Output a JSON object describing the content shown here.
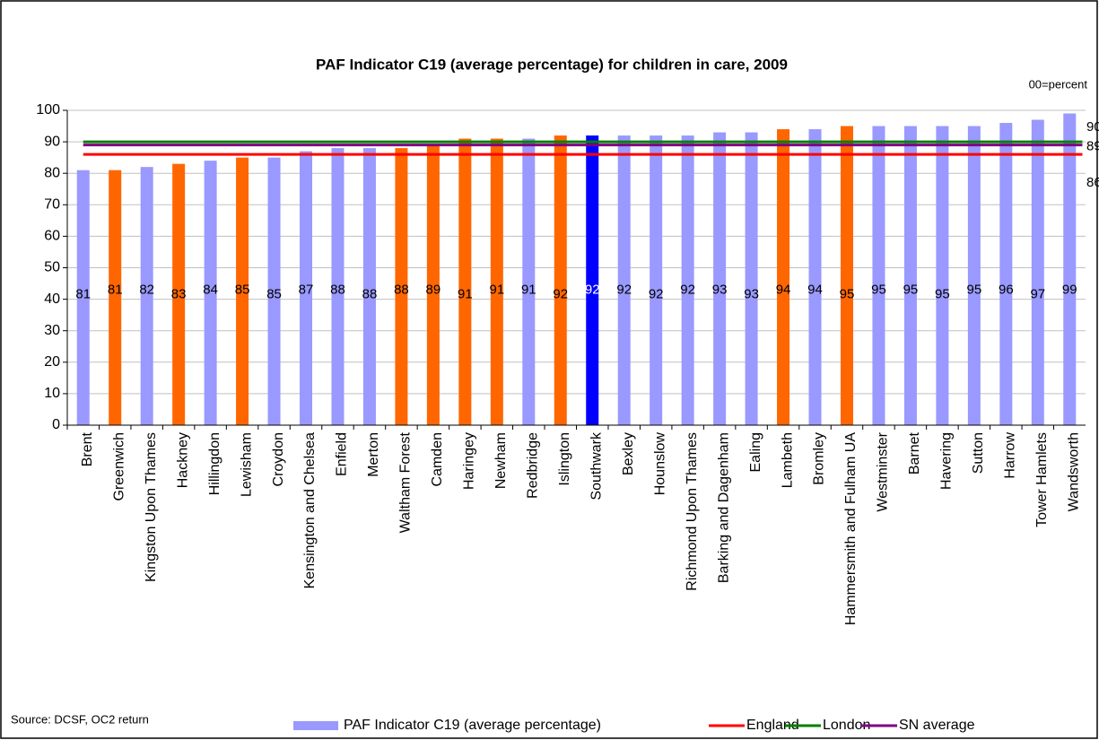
{
  "chart_data": {
    "type": "bar",
    "title": "PAF Indicator C19 (average percentage) for children in care, 2009",
    "unit_note": "00=percent",
    "source": "Source: DCSF, OC2 return",
    "categories": [
      "Brent",
      "Greenwich",
      "Kingston Upon Thames",
      "Hackney",
      "Hillingdon",
      "Lewisham",
      "Croydon",
      "Kensington and Chelsea",
      "Enfield",
      "Merton",
      "Waltham Forest",
      "Camden",
      "Haringey",
      "Newham",
      "Redbridge",
      "Islington",
      "Southwark",
      "Bexley",
      "Hounslow",
      "Richmond Upon Thames",
      "Barking and Dagenham",
      "Ealing",
      "Lambeth",
      "Bromley",
      "Hammersmith and Fulham UA",
      "Westminster",
      "Barnet",
      "Havering",
      "Sutton",
      "Harrow",
      "Tower Hamlets",
      "Wandsworth"
    ],
    "series": [
      {
        "name": "PAF Indicator C19 (average percentage)",
        "color": "#9999ff",
        "values": [
          81,
          81,
          82,
          83,
          84,
          85,
          85,
          87,
          88,
          88,
          88,
          89,
          91,
          91,
          91,
          92,
          92,
          92,
          92,
          92,
          93,
          93,
          94,
          94,
          95,
          95,
          95,
          95,
          95,
          96,
          97,
          99
        ],
        "colors": [
          "#9999ff",
          "#ff6600",
          "#9999ff",
          "#ff6600",
          "#9999ff",
          "#ff6600",
          "#9999ff",
          "#9999ff",
          "#9999ff",
          "#9999ff",
          "#ff6600",
          "#ff6600",
          "#ff6600",
          "#ff6600",
          "#9999ff",
          "#ff6600",
          "#0000ff",
          "#9999ff",
          "#9999ff",
          "#9999ff",
          "#9999ff",
          "#9999ff",
          "#ff6600",
          "#9999ff",
          "#ff6600",
          "#9999ff",
          "#9999ff",
          "#9999ff",
          "#9999ff",
          "#9999ff",
          "#9999ff",
          "#9999ff"
        ]
      }
    ],
    "reference_lines": [
      {
        "name": "England",
        "color": "#ff0000",
        "value": 86
      },
      {
        "name": "London",
        "color": "#008000",
        "value": 90
      },
      {
        "name": "SN average",
        "color": "#800080",
        "value": 89
      }
    ],
    "ylim": [
      0,
      100
    ],
    "yticks": [
      0,
      10,
      20,
      30,
      40,
      50,
      60,
      70,
      80,
      90,
      100
    ],
    "grid": true
  }
}
